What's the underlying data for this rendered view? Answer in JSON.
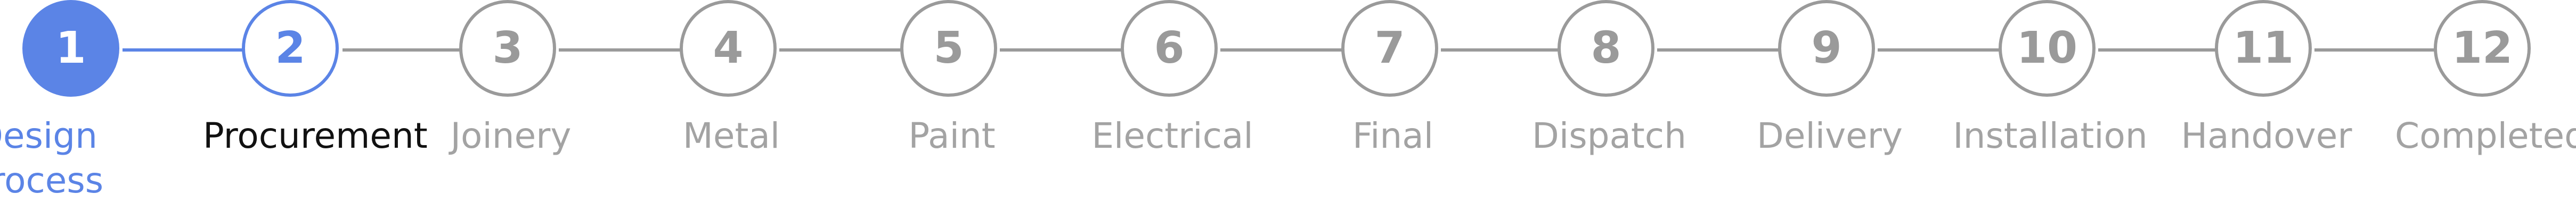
{
  "stepper": {
    "steps": [
      {
        "number": "1",
        "label": "Design Process",
        "state": "current"
      },
      {
        "number": "2",
        "label": "Procurement",
        "state": "next"
      },
      {
        "number": "3",
        "label": "Joinery",
        "state": "pending"
      },
      {
        "number": "4",
        "label": "Metal",
        "state": "pending"
      },
      {
        "number": "5",
        "label": "Paint",
        "state": "pending"
      },
      {
        "number": "6",
        "label": "Electrical",
        "state": "pending"
      },
      {
        "number": "7",
        "label": "Final",
        "state": "pending"
      },
      {
        "number": "8",
        "label": "Dispatch",
        "state": "pending"
      },
      {
        "number": "9",
        "label": "Delivery",
        "state": "pending"
      },
      {
        "number": "10",
        "label": "Installation",
        "state": "pending"
      },
      {
        "number": "11",
        "label": "Handover",
        "state": "pending"
      },
      {
        "number": "12",
        "label": "Completed",
        "state": "pending"
      }
    ],
    "colors": {
      "active": "#5b84e6",
      "pending": "#9a9a9a",
      "pending_text": "#a3a3a3",
      "next_label": "#111111"
    }
  }
}
